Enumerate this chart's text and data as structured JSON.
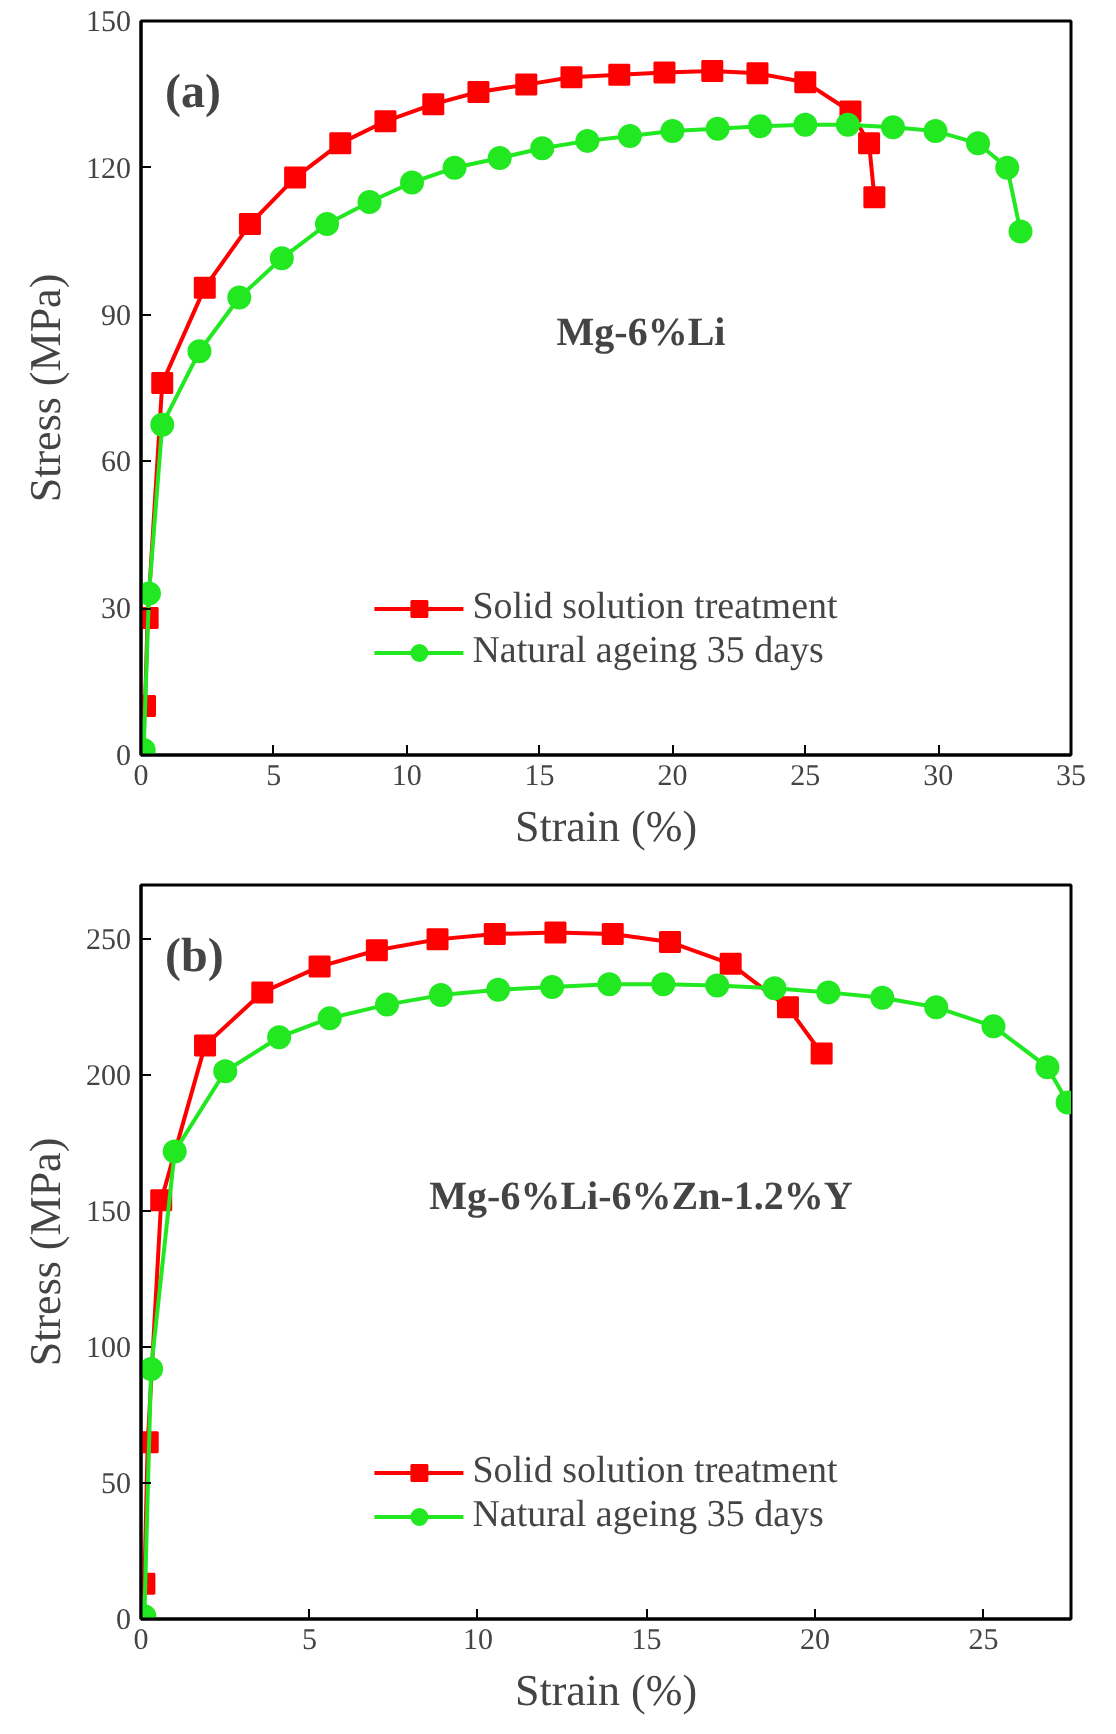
{
  "chart_data": [
    {
      "type": "line",
      "xlabel": "Strain (%)",
      "ylabel": "Stress (MPa)",
      "annotations": [
        "(a)",
        "Mg-6%Li"
      ],
      "xlim": [
        0,
        35
      ],
      "xticks": [
        0,
        5,
        10,
        15,
        20,
        25,
        30,
        35
      ],
      "ylim": [
        0,
        150
      ],
      "yticks": [
        0,
        30,
        60,
        90,
        120,
        150
      ],
      "grid": false,
      "legend": "bottom",
      "series": [
        {
          "name": "Solid solution treatment",
          "color": "#ff0000",
          "marker": "square",
          "x": [
            0.15,
            0.25,
            0.8,
            2.4,
            4.1,
            5.8,
            7.5,
            9.2,
            11,
            12.7,
            14.5,
            16.2,
            18,
            19.7,
            21.5,
            23.2,
            25,
            26.7,
            27.4,
            27.6
          ],
          "values": [
            10,
            28,
            76,
            95.5,
            108.5,
            118,
            125,
            129.5,
            133,
            135.5,
            137,
            138.5,
            139,
            139.5,
            139.8,
            139.3,
            137.5,
            131.5,
            125,
            114
          ]
        },
        {
          "name": "Natural ageing 35 days",
          "color": "#22e822",
          "marker": "circle",
          "x": [
            0.1,
            0.3,
            0.8,
            2.2,
            3.7,
            5.3,
            7,
            8.6,
            10.2,
            11.8,
            13.5,
            15.1,
            16.8,
            18.4,
            20,
            21.7,
            23.3,
            25,
            26.6,
            28.3,
            29.9,
            31.5,
            32.6,
            33.1
          ],
          "values": [
            1,
            33,
            67.5,
            82.5,
            93.5,
            101.5,
            108.5,
            113,
            117,
            120,
            122,
            124,
            125.5,
            126.5,
            127.5,
            128,
            128.5,
            128.8,
            128.8,
            128.3,
            127.5,
            125,
            120,
            107
          ]
        }
      ]
    },
    {
      "type": "line",
      "xlabel": "Strain (%)",
      "ylabel": "Stress (MPa)",
      "annotations": [
        "(b)",
        "Mg-6%Li-6%Zn-1.2%Y"
      ],
      "xlim": [
        0,
        27.6
      ],
      "xticks": [
        0,
        5,
        10,
        15,
        20,
        25
      ],
      "ylim": [
        0,
        270
      ],
      "yticks": [
        0,
        50,
        100,
        150,
        200,
        250
      ],
      "grid": false,
      "legend": "bottom",
      "series": [
        {
          "name": "Solid solution treatment",
          "color": "#ff0000",
          "marker": "square",
          "x": [
            0.1,
            0.2,
            0.6,
            1.9,
            3.6,
            5.3,
            7,
            8.8,
            10.5,
            12.3,
            14,
            15.7,
            17.5,
            19.2,
            20.2
          ],
          "values": [
            13,
            65,
            154,
            211,
            230.5,
            240,
            246,
            250,
            252,
            252.5,
            252,
            249,
            241,
            225,
            208
          ]
        },
        {
          "name": "Natural ageing 35 days",
          "color": "#22e822",
          "marker": "circle",
          "x": [
            0.1,
            0.3,
            1,
            2.5,
            4.1,
            5.6,
            7.3,
            8.9,
            10.6,
            12.2,
            13.9,
            15.5,
            17.1,
            18.8,
            20.4,
            22,
            23.6,
            25.3,
            26.9,
            27.5
          ],
          "values": [
            1,
            92,
            172,
            201.5,
            214,
            221,
            226,
            229.5,
            231.5,
            232.5,
            233.5,
            233.5,
            233,
            232,
            230.5,
            228.5,
            225,
            218,
            203,
            190
          ]
        }
      ]
    }
  ]
}
